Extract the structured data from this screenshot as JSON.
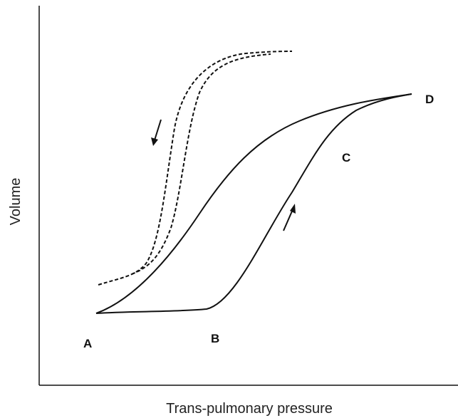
{
  "axes": {
    "y_label": "Volume",
    "x_label": "Trans-pulmonary pressure"
  },
  "points": [
    {
      "label": "A"
    },
    {
      "label": "B"
    },
    {
      "label": "C"
    },
    {
      "label": "D"
    }
  ]
}
